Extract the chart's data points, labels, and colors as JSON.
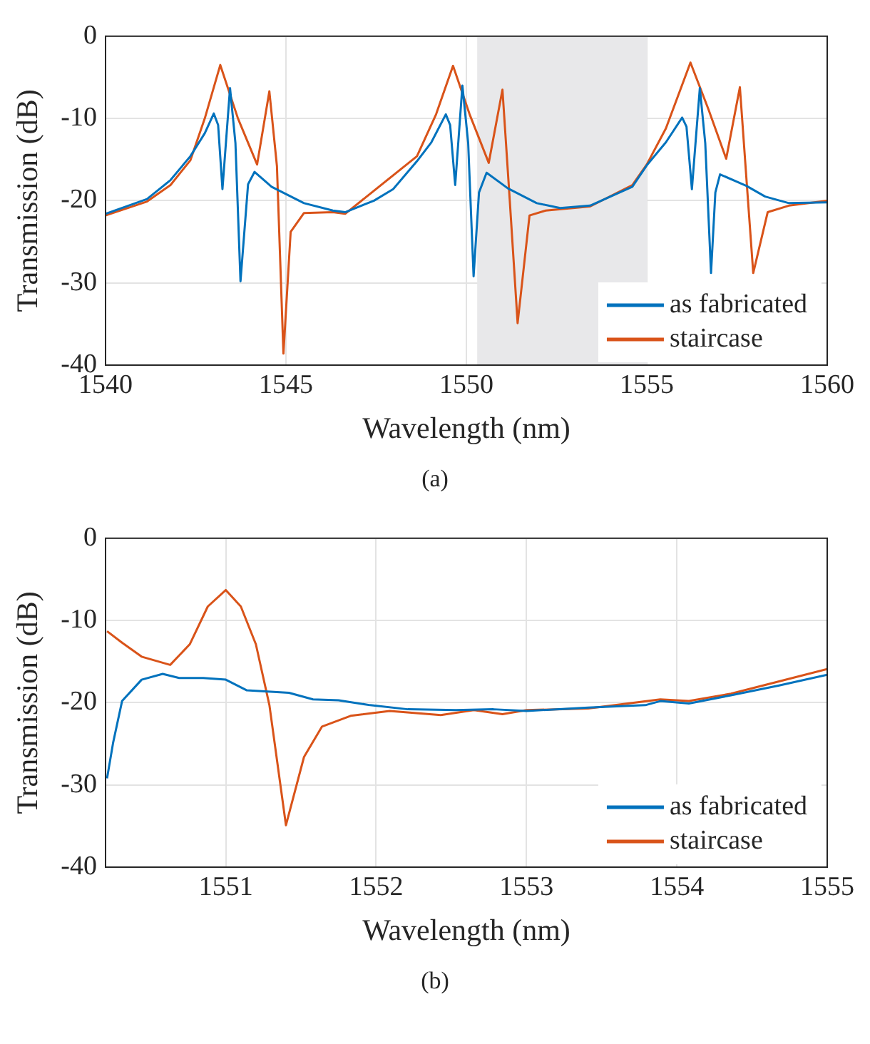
{
  "chart_data": [
    {
      "type": "line",
      "xlabel": "Wavelength (nm)",
      "ylabel": "Transmission (dB)",
      "annotations": [
        "(a)"
      ],
      "xlim": [
        1540,
        1560
      ],
      "ylim": [
        -40,
        0
      ],
      "xticks": [
        1540,
        1545,
        1550,
        1555,
        1560
      ],
      "yticks": [
        -40,
        -30,
        -20,
        -10,
        0
      ],
      "grid": true,
      "legend": "bottom right",
      "marker": "none",
      "line_style": "solid",
      "bands": [
        {
          "axis": "x",
          "from": 1550.3,
          "to": 1555,
          "color": "#e8e8ea"
        }
      ],
      "series": [
        {
          "name": "as fabricated",
          "color": "#0072bd",
          "x": [
            1540,
            1541.15,
            1541.8,
            1542.35,
            1542.75,
            1543,
            1543.12,
            1543.24,
            1543.45,
            1543.6,
            1543.74,
            1543.95,
            1544.13,
            1544.6,
            1545,
            1545.5,
            1546.3,
            1546.64,
            1547.44,
            1547.97,
            1548.63,
            1549.03,
            1549.43,
            1549.55,
            1549.69,
            1549.89,
            1550.05,
            1550.2,
            1550.35,
            1550.56,
            1551.15,
            1551.95,
            1552.6,
            1553.43,
            1554.6,
            1555,
            1555.53,
            1555.98,
            1556.1,
            1556.25,
            1556.47,
            1556.62,
            1556.78,
            1556.9,
            1557.03,
            1557.76,
            1558.28,
            1558.94,
            1560
          ],
          "values": [
            -21.6,
            -19.8,
            -17.5,
            -14.6,
            -11.8,
            -9.4,
            -10.8,
            -18.6,
            -6.3,
            -13,
            -29.8,
            -18,
            -16.5,
            -18.3,
            -19.2,
            -20.3,
            -21.2,
            -21.4,
            -20,
            -18.6,
            -15.2,
            -12.9,
            -9.5,
            -10.8,
            -18.1,
            -6,
            -13,
            -29.2,
            -19,
            -16.6,
            -18.5,
            -20.3,
            -20.9,
            -20.6,
            -18.3,
            -15.7,
            -12.9,
            -9.9,
            -11,
            -18.6,
            -6.3,
            -13,
            -28.8,
            -19,
            -16.8,
            -18.2,
            -19.5,
            -20.3,
            -20.2
          ]
        },
        {
          "name": "staircase",
          "color": "#d95319",
          "x": [
            1540,
            1541.15,
            1541.8,
            1542.35,
            1542.75,
            1543.18,
            1543.67,
            1544.2,
            1544.54,
            1544.75,
            1544.93,
            1545.13,
            1545.5,
            1546.3,
            1546.64,
            1548.63,
            1549.16,
            1549.63,
            1550.09,
            1550.62,
            1551,
            1551.2,
            1551.42,
            1551.75,
            1552.2,
            1553.43,
            1554.6,
            1555,
            1555.53,
            1556.21,
            1556.71,
            1557.2,
            1557.58,
            1557.8,
            1557.95,
            1558.35,
            1558.94,
            1560
          ],
          "values": [
            -21.8,
            -20.1,
            -18.1,
            -15.1,
            -10,
            -3.5,
            -10,
            -15.6,
            -6.7,
            -15.8,
            -38.6,
            -23.8,
            -21.5,
            -21.4,
            -21.6,
            -14.6,
            -9.5,
            -3.6,
            -9.5,
            -15.4,
            -6.5,
            -19.8,
            -34.9,
            -21.8,
            -21.2,
            -20.7,
            -18.1,
            -15.6,
            -11.2,
            -3.2,
            -8.9,
            -14.9,
            -6.2,
            -19.7,
            -28.8,
            -21.4,
            -20.6,
            -20
          ]
        }
      ]
    },
    {
      "type": "line",
      "xlabel": "Wavelength (nm)",
      "ylabel": "Transmission (dB)",
      "annotations": [
        "(b)"
      ],
      "xlim": [
        1550.2,
        1555
      ],
      "ylim": [
        -40,
        0
      ],
      "xticks": [
        1551,
        1552,
        1553,
        1554,
        1555
      ],
      "yticks": [
        -40,
        -30,
        -20,
        -10,
        0
      ],
      "grid": true,
      "legend": "bottom right",
      "marker": "none",
      "line_style": "solid",
      "series": [
        {
          "name": "as fabricated",
          "color": "#0072bd",
          "x": [
            1550.21,
            1550.25,
            1550.31,
            1550.44,
            1550.58,
            1550.69,
            1550.85,
            1551,
            1551.14,
            1551.42,
            1551.58,
            1551.75,
            1551.96,
            1552.21,
            1552.53,
            1552.78,
            1553,
            1553.41,
            1553.79,
            1553.89,
            1554.08,
            1554.36,
            1554.68,
            1555
          ],
          "values": [
            -29.2,
            -24.9,
            -19.8,
            -17.2,
            -16.5,
            -17,
            -17,
            -17.2,
            -18.5,
            -18.8,
            -19.6,
            -19.7,
            -20.3,
            -20.8,
            -20.9,
            -20.8,
            -21,
            -20.6,
            -20.3,
            -19.8,
            -20.1,
            -19.1,
            -17.9,
            -16.6
          ]
        },
        {
          "name": "staircase",
          "color": "#d95319",
          "x": [
            1550.21,
            1550.31,
            1550.44,
            1550.63,
            1550.76,
            1550.88,
            1551,
            1551.1,
            1551.2,
            1551.29,
            1551.4,
            1551.52,
            1551.64,
            1551.83,
            1552.09,
            1552.43,
            1552.65,
            1552.84,
            1553,
            1553.41,
            1553.89,
            1554.08,
            1554.36,
            1554.68,
            1555
          ],
          "values": [
            -11.3,
            -12.7,
            -14.4,
            -15.4,
            -12.9,
            -8.3,
            -6.3,
            -8.3,
            -12.9,
            -20.3,
            -34.9,
            -26.6,
            -22.9,
            -21.6,
            -21,
            -21.5,
            -20.9,
            -21.4,
            -20.9,
            -20.7,
            -19.6,
            -19.8,
            -18.9,
            -17.4,
            -15.9
          ]
        }
      ]
    }
  ]
}
